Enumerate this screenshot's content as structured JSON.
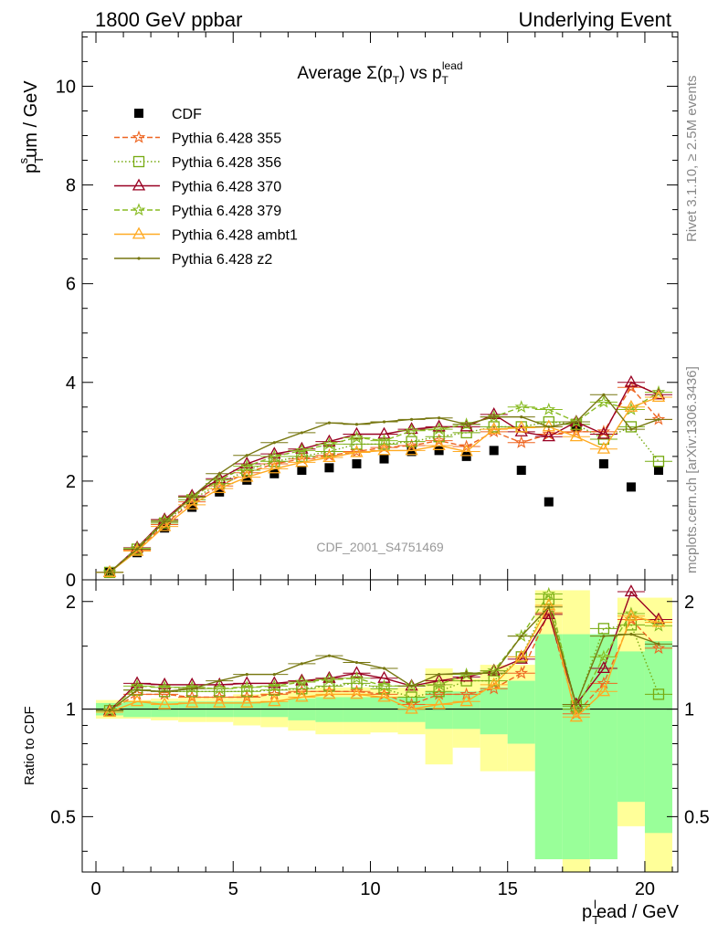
{
  "header": {
    "left": "1800 GeV ppbar",
    "right": "Underlying Event"
  },
  "side_text": {
    "rivet": "Rivet 3.1.10, ≥ 2.5M events",
    "mcplots": "mcplots.cern.ch [arXiv:1306.3436]"
  },
  "watermark": "CDF_2001_S4751469",
  "chart_data": [
    {
      "type": "scatter",
      "title": "Average Σ(p_T) vs p_T^lead",
      "xlabel": "p_T^lead / GeV",
      "ylabel": "p_T^sum / GeV",
      "xlim": [
        -0.5,
        21.2
      ],
      "ylim": [
        0,
        11.1
      ],
      "xticks": [
        0,
        5,
        10,
        15,
        20
      ],
      "yticks": [
        0,
        2,
        4,
        6,
        8,
        10
      ],
      "legend_position": "top-left",
      "x": [
        0.5,
        1.5,
        2.5,
        3.5,
        4.5,
        5.5,
        6.5,
        7.5,
        8.5,
        9.5,
        10.5,
        11.5,
        12.5,
        13.5,
        14.5,
        15.5,
        16.5,
        17.5,
        18.5,
        19.5,
        20.5
      ],
      "series": [
        {
          "name": "CDF",
          "color": "#000000",
          "marker": "square-filled",
          "line": "none",
          "values": [
            0.15,
            0.55,
            1.05,
            1.47,
            1.78,
            2.02,
            2.15,
            2.22,
            2.27,
            2.35,
            2.45,
            2.6,
            2.62,
            2.5,
            2.62,
            2.22,
            1.58,
            3.1,
            2.35,
            1.88,
            2.22
          ]
        },
        {
          "name": "Pythia 6.428 355",
          "color": "#ee6622",
          "marker": "star",
          "line": "dashed",
          "values": [
            0.15,
            0.6,
            1.12,
            1.58,
            1.9,
            2.17,
            2.35,
            2.45,
            2.52,
            2.6,
            2.68,
            2.72,
            2.82,
            2.7,
            3.0,
            2.78,
            2.95,
            3.0,
            3.0,
            3.9,
            3.25
          ]
        },
        {
          "name": "Pythia 6.428 356",
          "color": "#77aa11",
          "marker": "square-open",
          "line": "dotted",
          "values": [
            0.15,
            0.62,
            1.15,
            1.62,
            1.95,
            2.22,
            2.4,
            2.5,
            2.6,
            2.75,
            2.75,
            2.8,
            2.9,
            2.98,
            3.1,
            3.1,
            3.2,
            3.15,
            2.85,
            3.1,
            2.4
          ]
        },
        {
          "name": "Pythia 6.428 370",
          "color": "#990022",
          "marker": "triangle-open",
          "line": "solid",
          "values": [
            0.15,
            0.65,
            1.22,
            1.7,
            2.05,
            2.35,
            2.55,
            2.65,
            2.8,
            2.95,
            2.95,
            3.05,
            3.1,
            3.1,
            3.35,
            3.0,
            2.9,
            3.2,
            2.95,
            4.0,
            3.75
          ]
        },
        {
          "name": "Pythia 6.428 379",
          "color": "#88bb22",
          "marker": "star",
          "line": "dashed",
          "values": [
            0.15,
            0.64,
            1.2,
            1.67,
            2.02,
            2.3,
            2.5,
            2.62,
            2.75,
            2.88,
            2.82,
            3.02,
            3.05,
            3.15,
            3.3,
            3.5,
            3.45,
            3.2,
            3.6,
            3.45,
            3.8
          ]
        },
        {
          "name": "Pythia 6.428 ambt1",
          "color": "#ffaa22",
          "marker": "triangle-open",
          "line": "solid",
          "values": [
            0.15,
            0.58,
            1.08,
            1.52,
            1.85,
            2.08,
            2.25,
            2.38,
            2.48,
            2.58,
            2.62,
            2.62,
            2.72,
            2.6,
            3.05,
            3.08,
            3.1,
            2.9,
            2.65,
            3.5,
            3.7
          ]
        },
        {
          "name": "Pythia 6.428 z2",
          "color": "#777711",
          "marker": "dot",
          "line": "solid",
          "values": [
            0.15,
            0.62,
            1.18,
            1.68,
            2.15,
            2.52,
            2.78,
            2.98,
            3.18,
            3.15,
            3.2,
            3.25,
            3.28,
            3.15,
            3.3,
            3.3,
            3.1,
            3.2,
            3.75,
            3.05,
            3.25
          ]
        }
      ]
    },
    {
      "type": "line",
      "ylabel": "Ratio to CDF",
      "xlabel": "p_T^lead / GeV",
      "xlim": [
        -0.5,
        21.2
      ],
      "ylim": [
        0.35,
        2.3
      ],
      "yscale": "log",
      "yticks": [
        0.5,
        1,
        2
      ],
      "reference": 1,
      "x": [
        0.5,
        1.5,
        2.5,
        3.5,
        4.5,
        5.5,
        6.5,
        7.5,
        8.5,
        9.5,
        10.5,
        11.5,
        12.5,
        13.5,
        14.5,
        15.5,
        16.5,
        17.5,
        18.5,
        19.5,
        20.5
      ],
      "band_stat": {
        "color": "#99ff99",
        "lo": [
          0.96,
          0.95,
          0.95,
          0.95,
          0.95,
          0.95,
          0.95,
          0.93,
          0.92,
          0.92,
          0.92,
          0.92,
          0.88,
          0.88,
          0.85,
          0.8,
          0.38,
          0.38,
          0.38,
          0.55,
          0.45
        ],
        "hi": [
          1.04,
          1.05,
          1.05,
          1.05,
          1.05,
          1.05,
          1.05,
          1.07,
          1.08,
          1.08,
          1.08,
          1.08,
          1.12,
          1.12,
          1.15,
          1.2,
          1.62,
          1.62,
          1.62,
          1.45,
          1.55
        ]
      },
      "band_total": {
        "color": "#ffff99",
        "lo": [
          0.94,
          0.94,
          0.93,
          0.92,
          0.92,
          0.9,
          0.89,
          0.87,
          0.85,
          0.85,
          0.86,
          0.85,
          0.7,
          0.78,
          0.67,
          0.67,
          0.52,
          0.35,
          0.65,
          0.47,
          0.35
        ],
        "hi": [
          1.06,
          1.06,
          1.07,
          1.08,
          1.08,
          1.1,
          1.11,
          1.13,
          1.15,
          1.15,
          1.14,
          1.15,
          1.3,
          1.22,
          1.33,
          1.33,
          2.15,
          2.15,
          1.35,
          2.05,
          2.05
        ]
      },
      "series": [
        {
          "name": "Pythia 6.428 355",
          "color": "#ee6622",
          "marker": "star",
          "line": "dashed",
          "values": [
            0.99,
            1.1,
            1.1,
            1.08,
            1.08,
            1.08,
            1.1,
            1.12,
            1.12,
            1.12,
            1.1,
            1.03,
            1.1,
            1.1,
            1.14,
            1.26,
            1.86,
            0.97,
            1.18,
            1.78,
            1.48
          ]
        },
        {
          "name": "Pythia 6.428 356",
          "color": "#77aa11",
          "marker": "square-open",
          "line": "dotted",
          "values": [
            0.99,
            1.13,
            1.12,
            1.12,
            1.12,
            1.12,
            1.13,
            1.14,
            1.16,
            1.18,
            1.14,
            1.08,
            1.12,
            1.2,
            1.2,
            1.4,
            2.03,
            1.02,
            1.68,
            1.72,
            1.1
          ]
        },
        {
          "name": "Pythia 6.428 370",
          "color": "#990022",
          "marker": "triangle-open",
          "line": "solid",
          "values": [
            0.99,
            1.18,
            1.17,
            1.17,
            1.17,
            1.18,
            1.18,
            1.2,
            1.22,
            1.26,
            1.22,
            1.16,
            1.2,
            1.23,
            1.28,
            1.38,
            1.84,
            1.03,
            1.3,
            2.13,
            1.78
          ]
        },
        {
          "name": "Pythia 6.428 379",
          "color": "#88bb22",
          "marker": "star",
          "line": "dashed",
          "values": [
            0.99,
            1.16,
            1.15,
            1.15,
            1.14,
            1.15,
            1.16,
            1.19,
            1.21,
            1.22,
            1.16,
            1.16,
            1.17,
            1.25,
            1.28,
            1.6,
            2.1,
            1.0,
            1.4,
            1.85,
            1.71
          ]
        },
        {
          "name": "Pythia 6.428 ambt1",
          "color": "#ffaa22",
          "marker": "triangle-open",
          "line": "solid",
          "values": [
            0.98,
            1.05,
            1.03,
            1.04,
            1.04,
            1.04,
            1.05,
            1.08,
            1.1,
            1.1,
            1.08,
            1.0,
            1.03,
            1.05,
            1.17,
            1.4,
            1.95,
            0.95,
            1.12,
            1.82,
            1.75
          ]
        },
        {
          "name": "Pythia 6.428 z2",
          "color": "#777711",
          "marker": "dot",
          "line": "solid",
          "values": [
            0.99,
            1.13,
            1.12,
            1.14,
            1.2,
            1.25,
            1.25,
            1.34,
            1.41,
            1.35,
            1.3,
            1.16,
            1.25,
            1.26,
            1.26,
            1.6,
            1.93,
            1.03,
            1.6,
            1.62,
            1.52
          ]
        }
      ]
    }
  ]
}
